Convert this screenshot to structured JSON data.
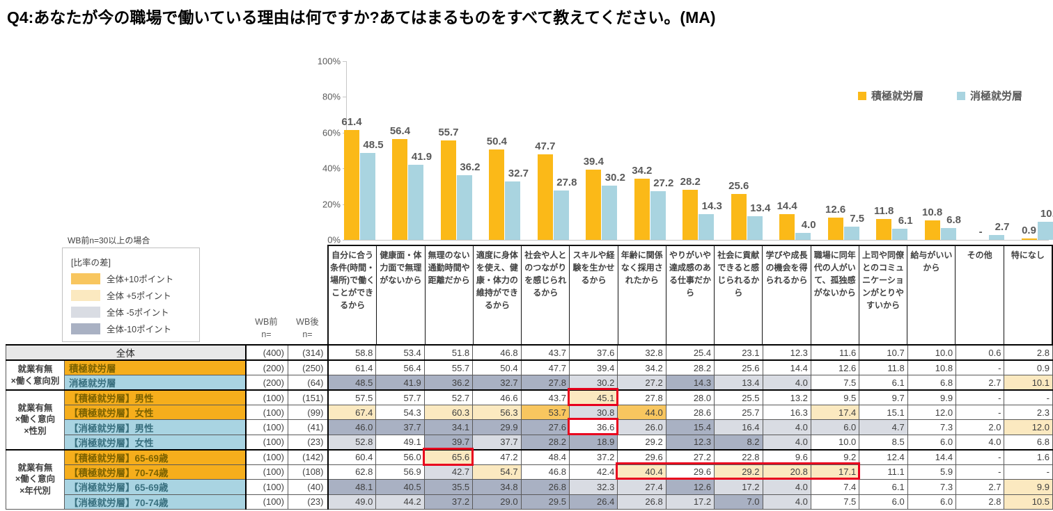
{
  "title": "Q4:あなたが今の職場で働いている理由は何ですか?あてはまるものをすべて教えてください。(MA)",
  "note": "WB前n=30以上の場合",
  "colors": {
    "bar_positive": "#FBB918",
    "bar_negative": "#A9D4E0",
    "row_positive": "#F6AE1C",
    "row_negative": "#A9D4E2",
    "hl_p10": "#F8C65F",
    "hl_p5": "#FBE9C0",
    "hl_m5": "#D9DCE3",
    "hl_m10": "#A9B1C3",
    "red_box": "#E8001D",
    "total_row_bg": "#E8E8E8"
  },
  "chart_data": {
    "type": "bar",
    "title": "",
    "xlabel": "",
    "ylabel": "",
    "ylim": [
      0,
      100
    ],
    "grid": false,
    "legend_position": "top-right",
    "y_ticks": [
      "0%",
      "20%",
      "40%",
      "60%",
      "80%",
      "100%"
    ],
    "categories": [
      "自分に合う条件(時間・場所)で働くことができるから",
      "健康面・体力面で無理がないから",
      "無理のない通勤時間や距離だから",
      "適度に身体を使え、健康・体力の維持ができるから",
      "社会や人とのつながりを感じられるから",
      "スキルや経験を生かせるから",
      "年齢に関係なく採用されたから",
      "やりがいや達成感のある仕事だから",
      "社会に貢献できると感じられるから",
      "学びや成長の機会を得られるから",
      "職場に同年代の人がいて、孤独感がないから",
      "上司や同僚とのコミュニケーションがとりやすいから",
      "給与がいいから",
      "その他",
      "特になし"
    ],
    "series": [
      {
        "name": "積極就労層",
        "color": "#FBB918",
        "values": [
          61.4,
          56.4,
          55.7,
          50.4,
          47.7,
          39.4,
          34.2,
          28.2,
          25.6,
          14.4,
          12.6,
          11.8,
          10.8,
          null,
          0.9
        ]
      },
      {
        "name": "消極就労層",
        "color": "#A9D4E0",
        "values": [
          48.5,
          41.9,
          36.2,
          32.7,
          27.8,
          30.2,
          27.2,
          14.3,
          13.4,
          4.0,
          7.5,
          6.1,
          6.8,
          2.7,
          10.1
        ]
      }
    ]
  },
  "diff_legend": {
    "title": "[比率の差]",
    "items": [
      {
        "label": "全体+10ポイント",
        "color": "#F8C65F"
      },
      {
        "label": "全体 +5ポイント",
        "color": "#FBE9C0"
      },
      {
        "label": "全体 -5ポイント",
        "color": "#D9DCE3"
      },
      {
        "label": "全体-10ポイント",
        "color": "#A9B1C3"
      }
    ]
  },
  "table": {
    "wb_pre_header": "WB前",
    "wb_post_header": "WB後",
    "n_eq": "n=",
    "row_groups": [
      {
        "label_lines": [
          "就業有無",
          "×働く意向別"
        ],
        "rows": [
          1,
          2
        ]
      },
      {
        "label_lines": [
          "就業有無",
          "×働く意向",
          "×性別"
        ],
        "rows": [
          3,
          4,
          5,
          6
        ]
      },
      {
        "label_lines": [
          "就業有無",
          "×働く意向",
          "×年代別"
        ],
        "rows": [
          7,
          8,
          9,
          10
        ]
      }
    ],
    "rows": [
      {
        "label": "全体",
        "type": "total",
        "wb_pre": "(400)",
        "wb_post": "(314)",
        "values": [
          "58.8",
          "53.4",
          "51.8",
          "46.8",
          "43.7",
          "37.6",
          "32.8",
          "25.4",
          "23.1",
          "12.3",
          "11.6",
          "10.7",
          "10.0",
          "0.6",
          "2.8"
        ],
        "hl": [
          "",
          "",
          "",
          "",
          "",
          "",
          "",
          "",
          "",
          "",
          "",
          "",
          "",
          "",
          ""
        ]
      },
      {
        "label": "積極就労層",
        "type": "pos",
        "wb_pre": "(200)",
        "wb_post": "(250)",
        "values": [
          "61.4",
          "56.4",
          "55.7",
          "50.4",
          "47.7",
          "39.4",
          "34.2",
          "28.2",
          "25.6",
          "14.4",
          "12.6",
          "11.8",
          "10.8",
          "-",
          "0.9"
        ],
        "hl": [
          "",
          "",
          "",
          "",
          "",
          "",
          "",
          "",
          "",
          "",
          "",
          "",
          "",
          "",
          ""
        ]
      },
      {
        "label": "消極就労層",
        "type": "neg",
        "wb_pre": "(200)",
        "wb_post": "(64)",
        "values": [
          "48.5",
          "41.9",
          "36.2",
          "32.7",
          "27.8",
          "30.2",
          "27.2",
          "14.3",
          "13.4",
          "4.0",
          "7.5",
          "6.1",
          "6.8",
          "2.7",
          "10.1"
        ],
        "hl": [
          "m10",
          "m10",
          "m10",
          "m10",
          "m10",
          "m5",
          "m5",
          "m10",
          "m5",
          "m5",
          "",
          "",
          "",
          "",
          "p5"
        ]
      },
      {
        "label": "【積極就労層】男性",
        "type": "pos",
        "wb_pre": "(100)",
        "wb_post": "(151)",
        "values": [
          "57.5",
          "57.7",
          "52.7",
          "46.6",
          "43.7",
          "45.1",
          "27.8",
          "28.0",
          "25.5",
          "13.2",
          "9.5",
          "9.7",
          "9.9",
          "-",
          "-"
        ],
        "hl": [
          "",
          "",
          "",
          "",
          "",
          "p5",
          "",
          "",
          "",
          "",
          "",
          "",
          "",
          "",
          ""
        ]
      },
      {
        "label": "【積極就労層】女性",
        "type": "pos",
        "wb_pre": "(100)",
        "wb_post": "(99)",
        "values": [
          "67.4",
          "54.3",
          "60.3",
          "56.3",
          "53.7",
          "30.8",
          "44.0",
          "28.6",
          "25.7",
          "16.3",
          "17.4",
          "15.1",
          "12.0",
          "-",
          "2.3"
        ],
        "hl": [
          "p5",
          "",
          "p5",
          "p5",
          "p10",
          "m5",
          "p10",
          "",
          "",
          "",
          "p5",
          "",
          "",
          "",
          ""
        ]
      },
      {
        "label": "【消極就労層】男性",
        "type": "neg",
        "wb_pre": "(100)",
        "wb_post": "(41)",
        "values": [
          "46.0",
          "37.7",
          "34.1",
          "29.9",
          "27.6",
          "36.6",
          "26.0",
          "15.4",
          "16.4",
          "4.0",
          "6.0",
          "4.7",
          "7.3",
          "2.0",
          "12.0"
        ],
        "hl": [
          "m10",
          "m10",
          "m10",
          "m10",
          "m10",
          "",
          "m5",
          "m10",
          "m5",
          "m5",
          "m5",
          "m5",
          "",
          "",
          "p5"
        ]
      },
      {
        "label": "【消極就労層】女性",
        "type": "neg",
        "wb_pre": "(100)",
        "wb_post": "(23)",
        "values": [
          "52.8",
          "49.1",
          "39.7",
          "37.7",
          "28.2",
          "18.9",
          "29.2",
          "12.3",
          "8.2",
          "4.0",
          "10.0",
          "8.5",
          "6.0",
          "4.0",
          "6.8"
        ],
        "hl": [
          "m5",
          "",
          "m10",
          "m5",
          "m10",
          "m10",
          "",
          "m10",
          "m10",
          "m5",
          "",
          "",
          "",
          "",
          ""
        ]
      },
      {
        "label": "【積極就労層】65-69歳",
        "type": "pos",
        "wb_pre": "(100)",
        "wb_post": "(142)",
        "values": [
          "60.4",
          "56.0",
          "65.6",
          "47.2",
          "48.4",
          "37.2",
          "29.6",
          "27.2",
          "22.8",
          "9.6",
          "9.2",
          "12.4",
          "14.4",
          "-",
          "1.6"
        ],
        "hl": [
          "",
          "",
          "p5",
          "",
          "",
          "",
          "",
          "",
          "",
          "",
          "",
          "",
          "",
          "",
          ""
        ]
      },
      {
        "label": "【積極就労層】70-74歳",
        "type": "pos",
        "wb_pre": "(100)",
        "wb_post": "(108)",
        "values": [
          "62.8",
          "56.9",
          "42.7",
          "54.7",
          "46.8",
          "42.4",
          "40.4",
          "29.6",
          "29.2",
          "20.8",
          "17.1",
          "11.1",
          "5.9",
          "-",
          "-"
        ],
        "hl": [
          "",
          "",
          "m5",
          "p5",
          "",
          "",
          "p5",
          "",
          "p5",
          "p5",
          "p5",
          "",
          "",
          "",
          ""
        ]
      },
      {
        "label": "【消極就労層】65-69歳",
        "type": "neg",
        "wb_pre": "(100)",
        "wb_post": "(40)",
        "values": [
          "48.1",
          "40.5",
          "35.5",
          "34.8",
          "26.8",
          "32.3",
          "27.4",
          "12.6",
          "17.2",
          "4.0",
          "7.4",
          "6.1",
          "7.3",
          "2.7",
          "9.9"
        ],
        "hl": [
          "m10",
          "m10",
          "m10",
          "m10",
          "m10",
          "m5",
          "m5",
          "m10",
          "m5",
          "m5",
          "",
          "",
          "",
          "",
          "p5"
        ]
      },
      {
        "label": "【消極就労層】70-74歳",
        "type": "neg",
        "wb_pre": "(100)",
        "wb_post": "(23)",
        "values": [
          "49.0",
          "44.2",
          "37.2",
          "29.0",
          "29.5",
          "26.4",
          "26.8",
          "17.2",
          "7.0",
          "4.0",
          "7.5",
          "6.0",
          "6.0",
          "2.8",
          "10.5"
        ],
        "hl": [
          "m5",
          "m5",
          "m10",
          "m10",
          "m10",
          "m10",
          "m5",
          "m5",
          "m10",
          "m5",
          "",
          "",
          "",
          "",
          "p5"
        ]
      }
    ],
    "red_boxes": [
      {
        "row": 3,
        "col": 5,
        "span": 1
      },
      {
        "row": 5,
        "col": 5,
        "span": 1
      },
      {
        "row": 7,
        "col": 2,
        "span": 1
      },
      {
        "row": 8,
        "col": 6,
        "span": 5
      }
    ]
  }
}
